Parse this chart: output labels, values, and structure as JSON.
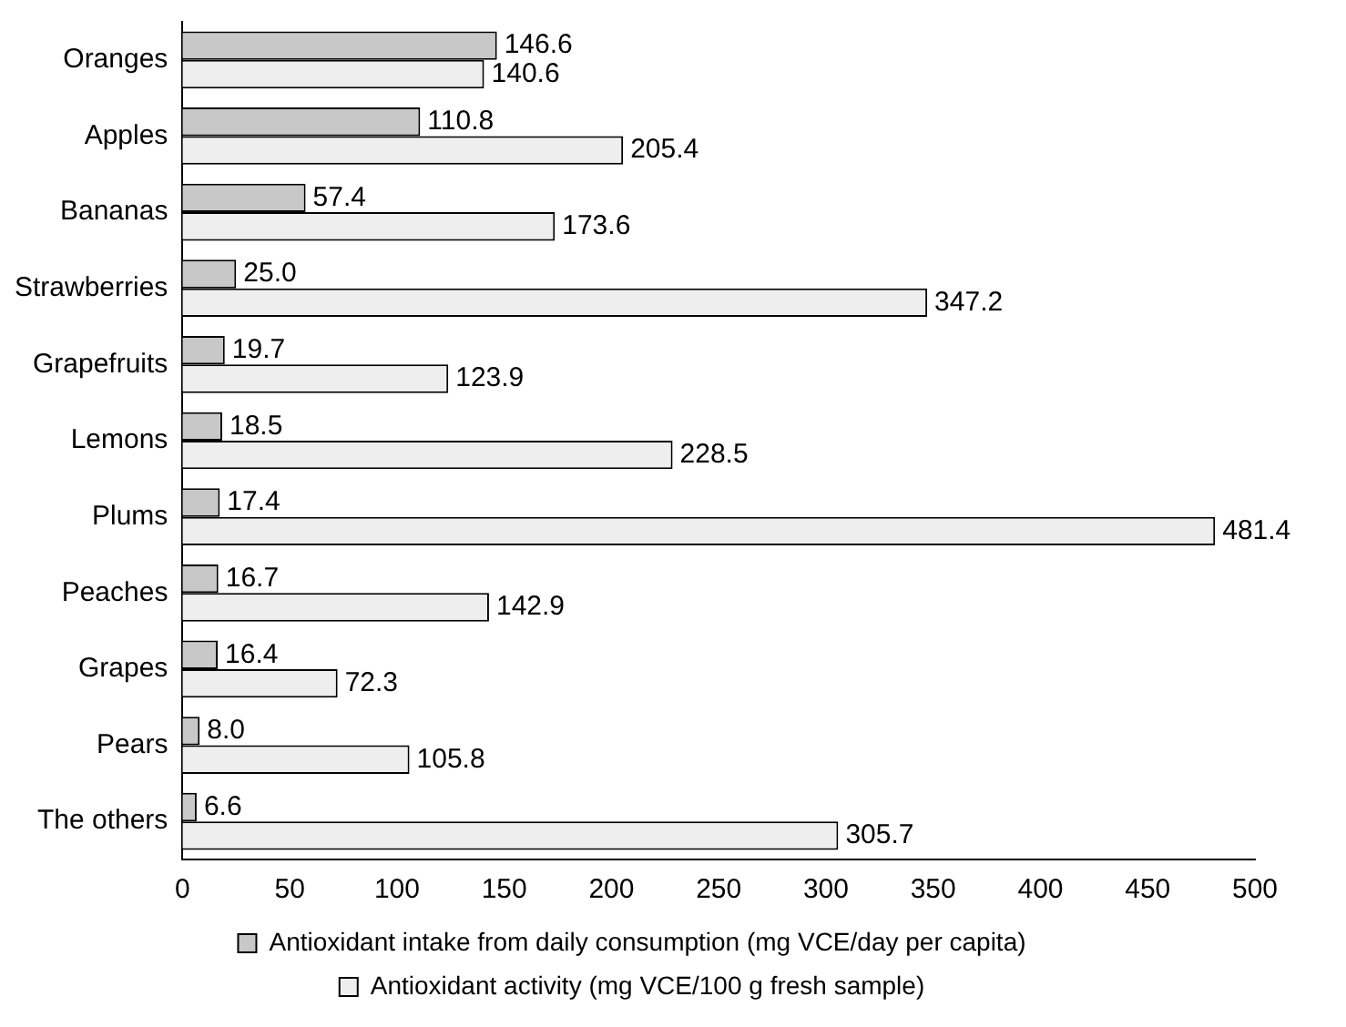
{
  "chart_data": {
    "type": "bar",
    "orientation": "horizontal",
    "categories": [
      "Oranges",
      "Apples",
      "Bananas",
      "Strawberries",
      "Grapefruits",
      "Lemons",
      "Plums",
      "Peaches",
      "Grapes",
      "Pears",
      "The others"
    ],
    "series": [
      {
        "name": "Antioxidant intake from daily consumption (mg VCE/day per capita)",
        "color": "#c8c8c8",
        "values": [
          146.6,
          110.8,
          57.4,
          25.0,
          19.7,
          18.5,
          17.4,
          16.7,
          16.4,
          8.0,
          6.6
        ],
        "value_labels": [
          "146.6",
          "110.8",
          "57.4",
          "25.0",
          "19.7",
          "18.5",
          "17.4",
          "16.7",
          "16.4",
          "8.0",
          "6.6"
        ]
      },
      {
        "name": "Antioxidant activity (mg VCE/100 g fresh sample)",
        "color": "#eeeeee",
        "values": [
          140.6,
          205.4,
          173.6,
          347.2,
          123.9,
          228.5,
          481.4,
          142.9,
          72.3,
          105.8,
          305.7
        ],
        "value_labels": [
          "140.6",
          "205.4",
          "173.6",
          "347.2",
          "123.9",
          "228.5",
          "481.4",
          "142.9",
          "72.3",
          "105.8",
          "305.7"
        ]
      }
    ],
    "xlim": [
      0,
      500
    ],
    "xticks": [
      0,
      50,
      100,
      150,
      200,
      250,
      300,
      350,
      400,
      450,
      500
    ],
    "grid": false,
    "legend": "bottom"
  }
}
